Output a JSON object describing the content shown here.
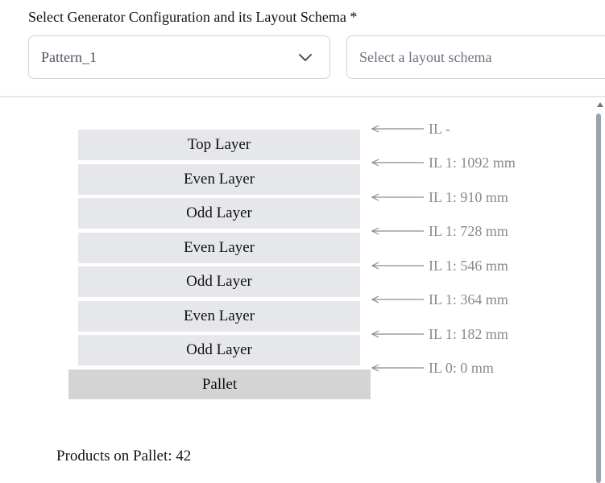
{
  "form": {
    "label": "Select Generator Configuration and its Layout Schema *",
    "config_select": {
      "value": "Pattern_1",
      "icon": "chevron-down-icon"
    },
    "schema_select": {
      "placeholder": "Select a layout schema"
    }
  },
  "stack": {
    "layers": [
      {
        "label": "Top Layer"
      },
      {
        "label": "Even Layer"
      },
      {
        "label": "Odd Layer"
      },
      {
        "label": "Even Layer"
      },
      {
        "label": "Odd Layer"
      },
      {
        "label": "Even Layer"
      },
      {
        "label": "Odd Layer"
      }
    ],
    "pallet": {
      "label": "Pallet"
    },
    "interlayers": [
      {
        "text": "IL -"
      },
      {
        "text": "IL 1: 1092 mm"
      },
      {
        "text": "IL 1: 910 mm"
      },
      {
        "text": "IL 1: 728 mm"
      },
      {
        "text": "IL 1: 546 mm"
      },
      {
        "text": "IL 1: 364 mm"
      },
      {
        "text": "IL 1: 182 mm"
      },
      {
        "text": "IL 0: 0 mm"
      }
    ]
  },
  "summary": {
    "products_on_pallet": "Products on Pallet: 42"
  },
  "colors": {
    "layer_fill": "#e5e7eb",
    "pallet_fill": "#d4d4d4",
    "interlayer_text": "#8a8a8a"
  }
}
